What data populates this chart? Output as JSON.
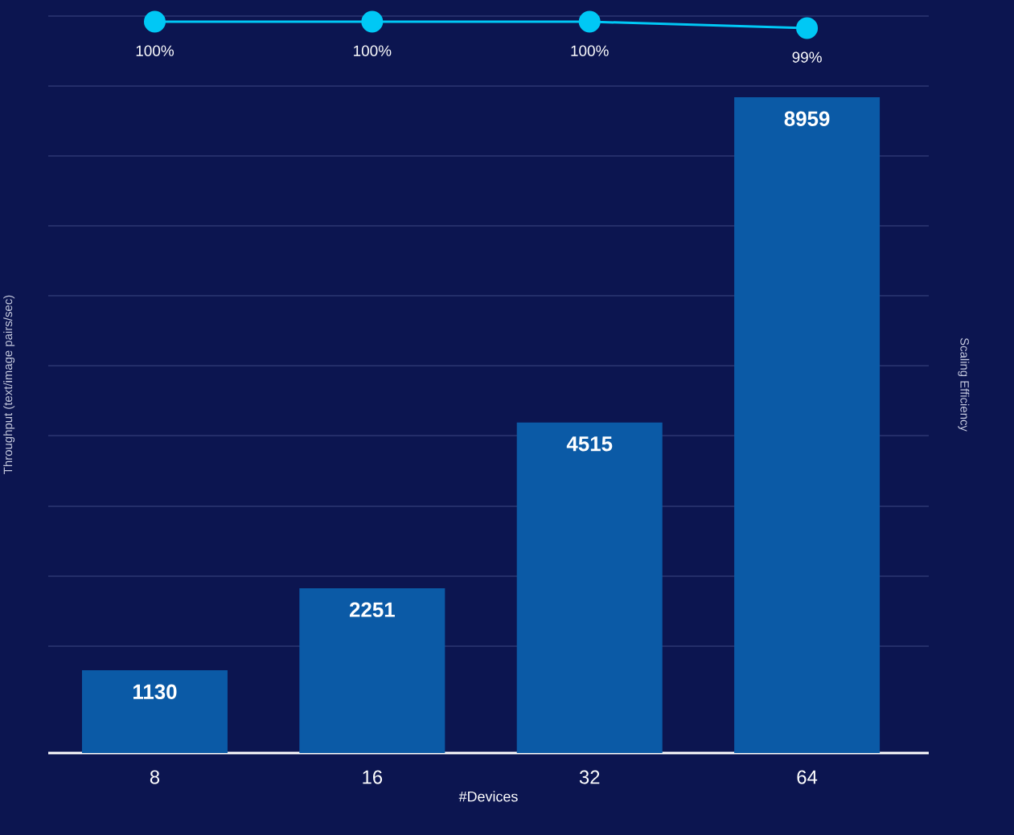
{
  "chart_data": {
    "type": "bar",
    "xlabel": "#Devices",
    "ylabel": "Throughput (text/image pairs/sec)",
    "y2label": "Scaling Efficiency",
    "categories": [
      "8",
      "16",
      "32",
      "64"
    ],
    "series": [
      {
        "color": "#0b5aa6",
        "values": [
          1130,
          2251,
          4515,
          8959
        ],
        "value_labels": [
          "1130",
          "2251",
          "4515",
          "8959"
        ]
      },
      {
        "type": "line",
        "axis": "y2",
        "color": "#00c8f5",
        "marker": "circle",
        "values": [
          100,
          100,
          100,
          99
        ],
        "value_labels": [
          "100%",
          "100%",
          "100%",
          "99%"
        ]
      }
    ],
    "ylim": [
      0,
      10069
    ],
    "yticks": [
      {
        "value": 1460,
        "label": null
      },
      {
        "value": 2416,
        "label": null
      },
      {
        "value": 3371,
        "label": null
      },
      {
        "value": 4337,
        "label": null
      },
      {
        "value": 5292,
        "label": null
      },
      {
        "value": 6248,
        "label": null
      },
      {
        "value": 7203,
        "label": null
      },
      {
        "value": 8158,
        "label": null
      },
      {
        "value": 9113,
        "label": null
      },
      {
        "value": 10069,
        "label": null
      }
    ],
    "y2lim": [
      -13.75,
      100.875
    ],
    "grid": "y",
    "tick_labels": "x"
  }
}
